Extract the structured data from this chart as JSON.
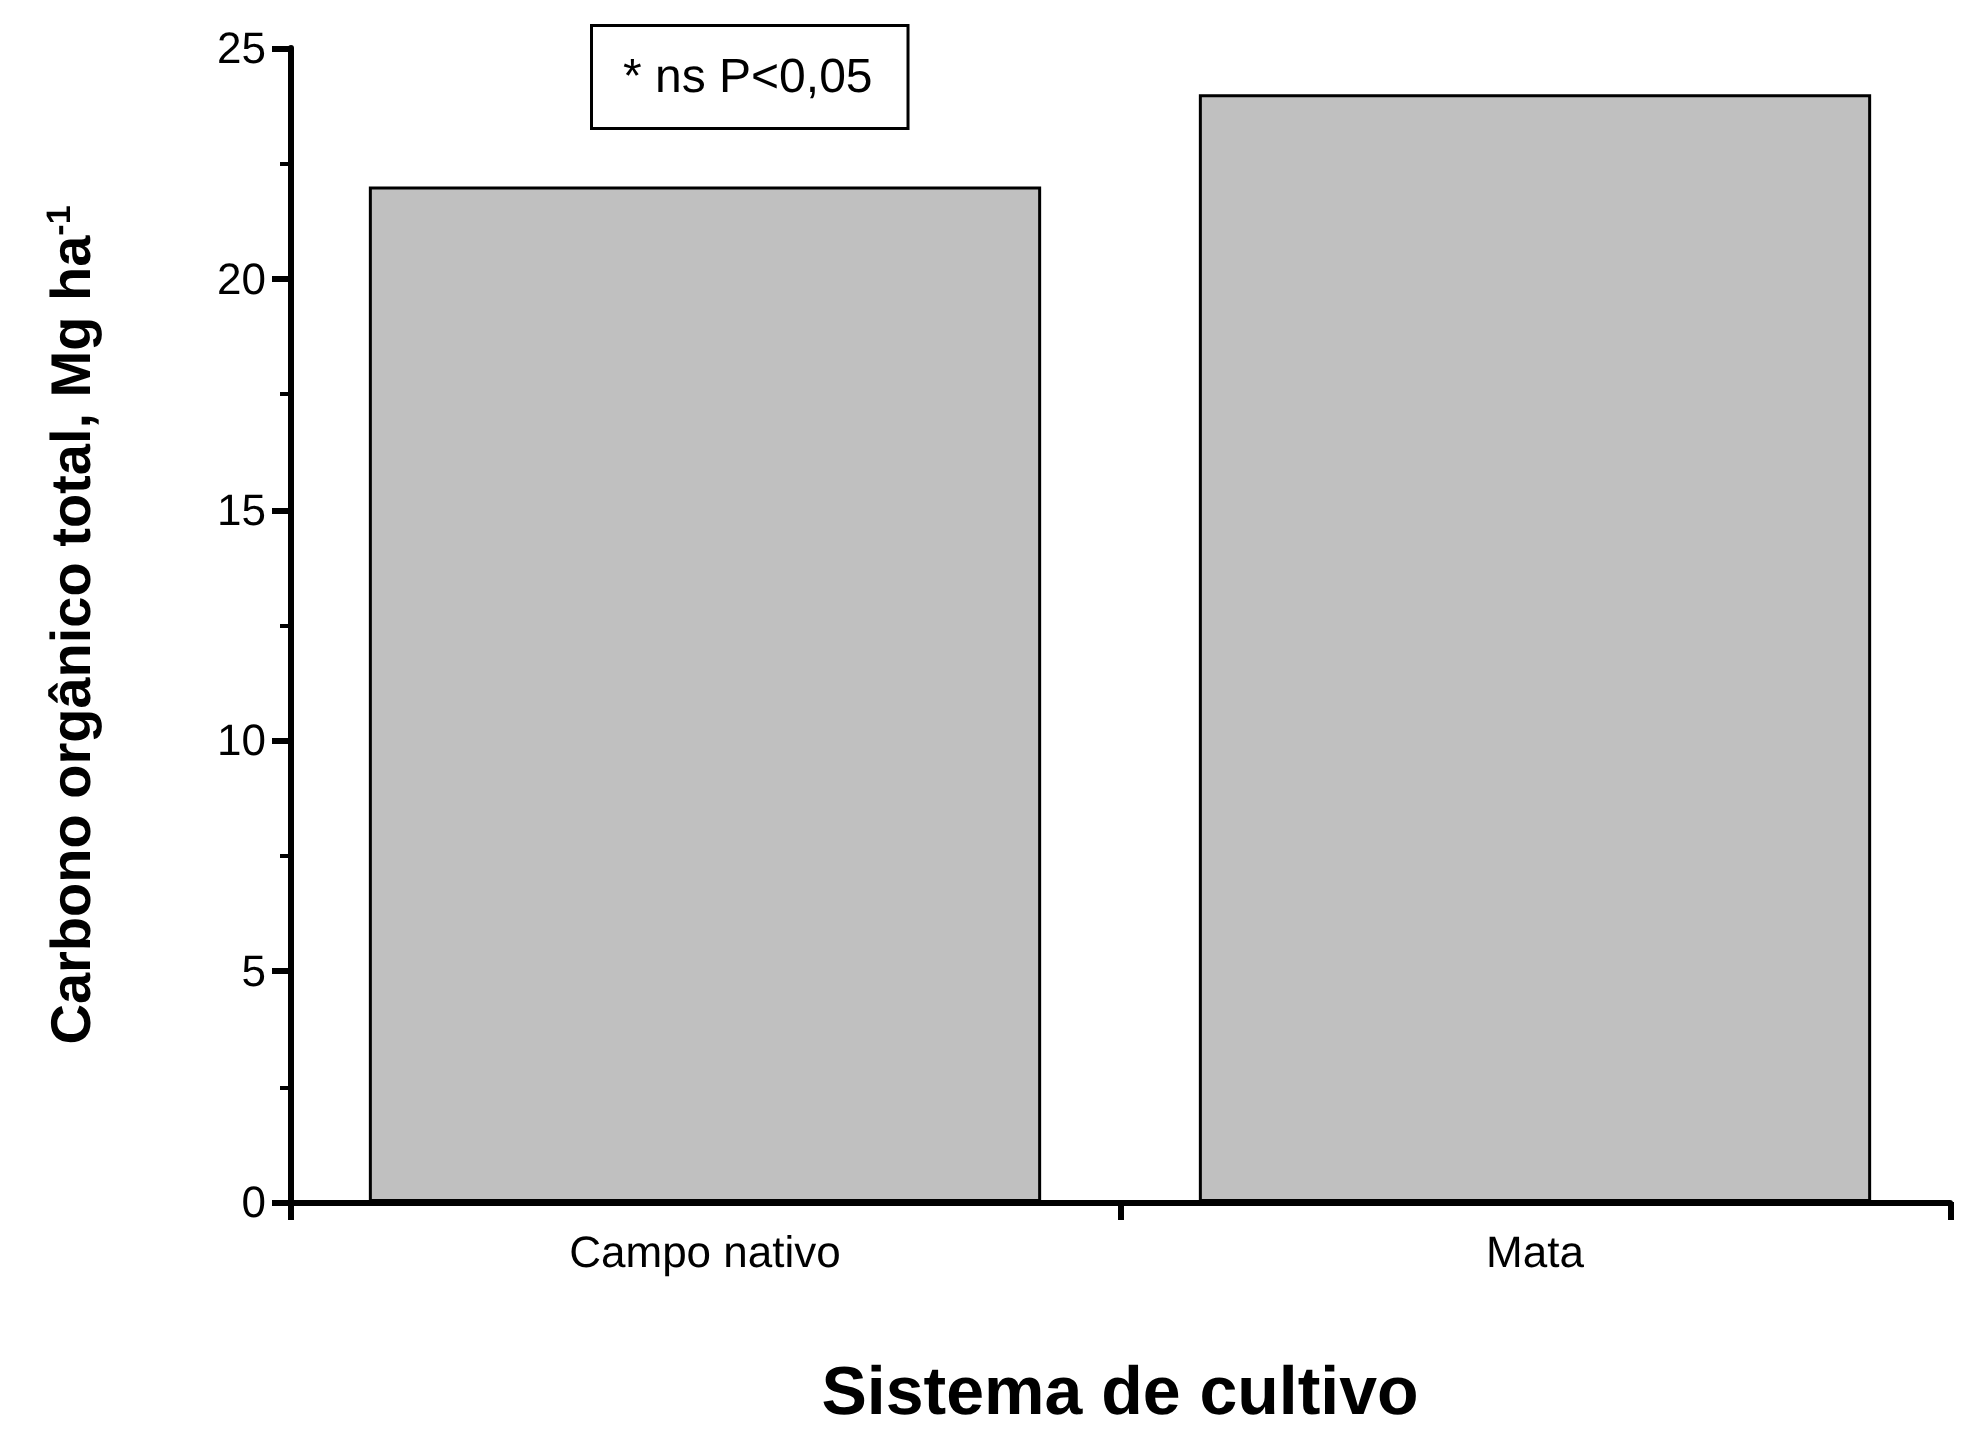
{
  "chart_data": {
    "type": "bar",
    "xlabel": "Sistema de cultivo",
    "ylabel": "Carbono orgânico total, Mg ha$^{-1}$",
    "categories": [
      "Campo nativo",
      "Mata"
    ],
    "values": [
      22,
      24
    ],
    "color": "#c0c0c0",
    "ylim": [
      0,
      25
    ],
    "yticks": [
      0,
      5,
      10,
      15,
      20,
      25
    ],
    "grid": false,
    "annotations": [
      "* ns P<0,05"
    ]
  }
}
